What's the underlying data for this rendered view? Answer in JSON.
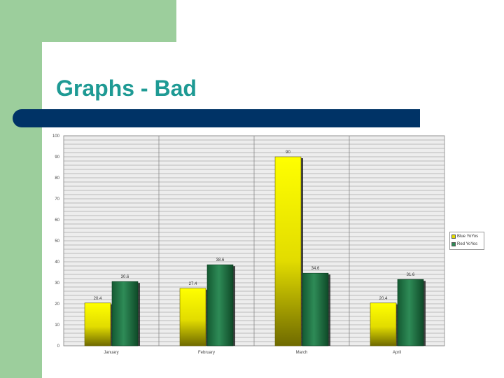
{
  "slide": {
    "title": "Graphs - Bad"
  },
  "colors": {
    "accent_green": "#9cce9c",
    "title_text": "#1e9a94",
    "title_bar": "#003366",
    "series_yellow": "#ffff00",
    "series_green": "#2e8b57"
  },
  "chart_data": {
    "type": "bar",
    "categories": [
      "January",
      "February",
      "March",
      "April"
    ],
    "series": [
      {
        "name": "Blue YoYos",
        "values": [
          20.4,
          27.4,
          90,
          20.4
        ]
      },
      {
        "name": "Red YoYos",
        "values": [
          30.6,
          38.6,
          34.6,
          31.6
        ]
      }
    ],
    "value_labels": [
      [
        "20.4",
        "27.4",
        "90",
        "20.4"
      ],
      [
        "30.6",
        "38.6",
        "34.6",
        "31.6"
      ]
    ],
    "ylim": [
      0,
      100
    ],
    "yticks": [
      0,
      10,
      20,
      30,
      40,
      50,
      60,
      70,
      80,
      90,
      100
    ],
    "grid": true,
    "legend_position": "right"
  }
}
